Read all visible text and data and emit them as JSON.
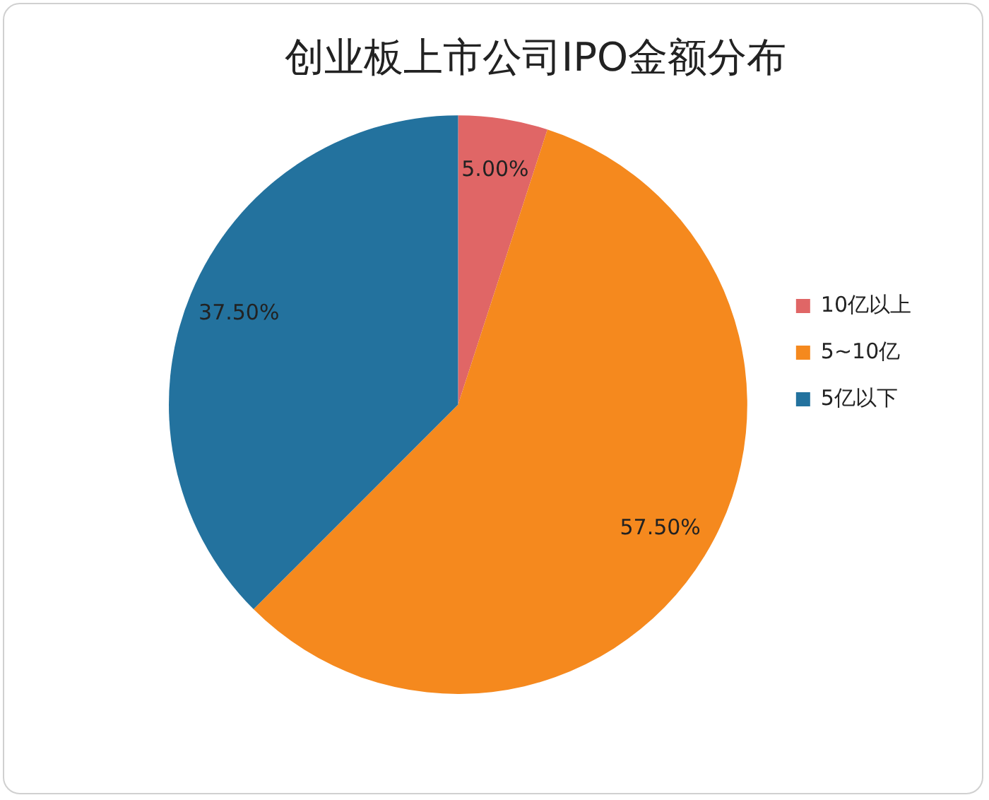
{
  "chart_data": {
    "type": "pie",
    "title": "创业板上市公司IPO金额分布",
    "categories": [
      "10亿以上",
      "5~10亿",
      "5亿以下"
    ],
    "values": [
      5,
      57.5,
      37.5
    ],
    "colors": [
      "#e06666",
      "#f5891e",
      "#23729e"
    ],
    "value_labels": [
      "5.00%",
      "57.50%",
      "37.50%"
    ],
    "legend": "right"
  }
}
